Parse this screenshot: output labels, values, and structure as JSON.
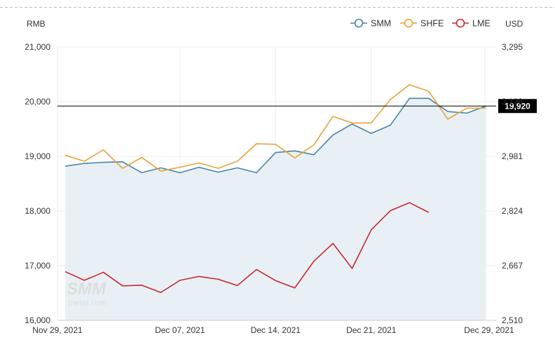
{
  "chart_data": {
    "type": "area",
    "left_axis_label": "RMB",
    "right_axis_label": "USD",
    "ylim": [
      16000,
      21000
    ],
    "y2lim": [
      2510,
      3295
    ],
    "y_ticks": [
      "16,000",
      "17,000",
      "18,000",
      "19,000",
      "20,000",
      "21,000"
    ],
    "y2_ticks": [
      "2,510",
      "2,667",
      "2,824",
      "2,981",
      "3,138",
      "3,295"
    ],
    "x_ticks": [
      "Nov 29, 2021",
      "Dec 07, 2021",
      "Dec 14, 2021",
      "Dec 21, 2021",
      "Dec 29, 2021"
    ],
    "grid": true,
    "legend_position": "top-right",
    "reference_line": {
      "value": 19920,
      "label": "19,920"
    },
    "series": [
      {
        "name": "SMM",
        "axis": "left",
        "style": "area",
        "color": "#4b84a3",
        "values": [
          18820,
          18870,
          18890,
          18900,
          18700,
          18790,
          18700,
          18800,
          18710,
          18790,
          18700,
          19070,
          19100,
          19030,
          19390,
          19590,
          19420,
          19570,
          20060,
          20060,
          19820,
          19790,
          19920
        ]
      },
      {
        "name": "SHFE",
        "axis": "left",
        "style": "line",
        "color": "#e8a23a",
        "values": [
          19020,
          18910,
          19120,
          18780,
          18980,
          18730,
          18800,
          18880,
          18780,
          18910,
          19230,
          19220,
          18970,
          19210,
          19730,
          19610,
          19610,
          20040,
          20310,
          20190,
          19680,
          19880,
          19880
        ]
      },
      {
        "name": "LME",
        "axis": "right",
        "style": "line",
        "color": "#c7282e",
        "values": [
          2650,
          2625,
          2648,
          2609,
          2611,
          2590,
          2625,
          2636,
          2628,
          2610,
          2656,
          2624,
          2603,
          2680,
          2731,
          2659,
          2770,
          2825,
          2848,
          2820
        ]
      }
    ],
    "watermark": "SMM metal.com"
  },
  "colors": {
    "area_fill": "#e8f0f5",
    "grid": "#ececec",
    "axis": "#cccccc",
    "reference_line": "#000000",
    "badge": "#000000",
    "watermark": "#dddddd"
  }
}
